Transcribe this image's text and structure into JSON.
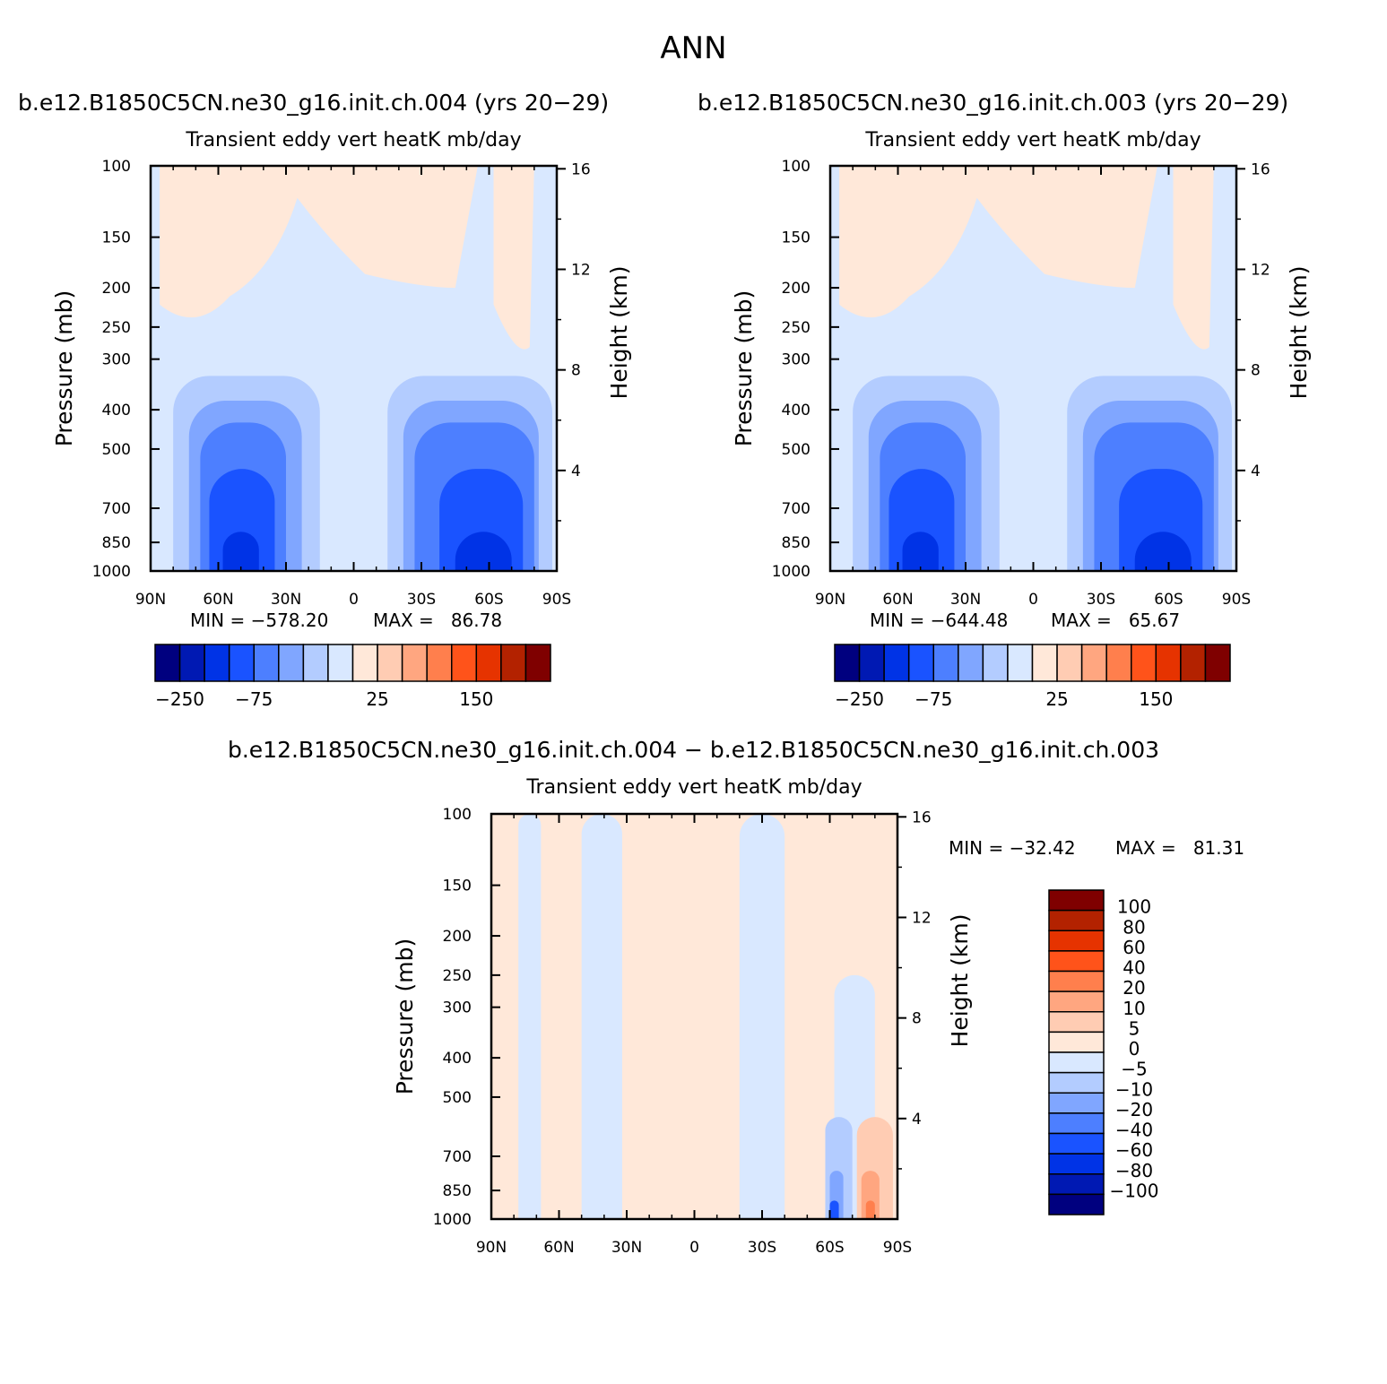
{
  "title": "ANN",
  "panels": [
    {
      "case": "b.e12.B1850C5CN.ne30_g16.init.ch.004 (yrs 20−29)",
      "subtitle": "Transient eddy vert heatK mb/day",
      "min_label": "MIN = −578.20",
      "max_label": "MAX =   86.78"
    },
    {
      "case": "b.e12.B1850C5CN.ne30_g16.init.ch.003 (yrs 20−29)",
      "subtitle": "Transient eddy vert heatK mb/day",
      "min_label": "MIN = −644.48",
      "max_label": "MAX =   65.67"
    },
    {
      "case": "b.e12.B1850C5CN.ne30_g16.init.ch.004 − b.e12.B1850C5CN.ne30_g16.init.ch.003",
      "subtitle": "Transient eddy vert heatK mb/day",
      "min_label": "MIN = −32.42",
      "max_label": "MAX =   81.31"
    }
  ],
  "chart_data": [
    {
      "type": "heatmap",
      "xlabel": "",
      "ylabel": "Pressure (mb)",
      "ylabel_right": "Height (km)",
      "x_ticks": [
        "90N",
        "60N",
        "30N",
        "0",
        "30S",
        "60S",
        "90S"
      ],
      "y_ticks": [
        100,
        150,
        200,
        250,
        300,
        400,
        500,
        700,
        850,
        1000
      ],
      "y_right_ticks": [
        4,
        8,
        12,
        16
      ],
      "colorbar_labels": [
        "−250",
        "−75",
        "25",
        "150"
      ],
      "colors": [
        "#00007f",
        "#0019b3",
        "#0033e6",
        "#1a53ff",
        "#4d7fff",
        "#80a6ff",
        "#b3ccff",
        "#d9e8ff",
        "#ffe8d9",
        "#ffccb3",
        "#ffa680",
        "#ff7f4d",
        "#ff531a",
        "#e63300",
        "#b32200",
        "#7f0000"
      ],
      "bands": [
        {
          "color": "#d9e8ff",
          "lat": [
            85,
            -85
          ],
          "p": [
            1000,
            330
          ]
        },
        {
          "color": "#b3ccff",
          "lat": [
            80,
            15
          ],
          "p": [
            1000,
            330
          ]
        },
        {
          "color": "#b3ccff",
          "lat": [
            -15,
            -88
          ],
          "p": [
            1000,
            330
          ]
        },
        {
          "color": "#80a6ff",
          "lat": [
            73,
            23
          ],
          "p": [
            1000,
            380
          ]
        },
        {
          "color": "#80a6ff",
          "lat": [
            -22,
            -82
          ],
          "p": [
            1000,
            380
          ]
        },
        {
          "color": "#4d7fff",
          "lat": [
            68,
            30
          ],
          "p": [
            1000,
            430
          ]
        },
        {
          "color": "#4d7fff",
          "lat": [
            -27,
            -80
          ],
          "p": [
            1000,
            430
          ]
        },
        {
          "color": "#1a53ff",
          "lat": [
            64,
            35
          ],
          "p": [
            1000,
            560
          ]
        },
        {
          "color": "#1a53ff",
          "lat": [
            -38,
            -75
          ],
          "p": [
            1000,
            560
          ]
        },
        {
          "color": "#0033e6",
          "lat": [
            58,
            42
          ],
          "p": [
            1000,
            800
          ]
        },
        {
          "color": "#0033e6",
          "lat": [
            -45,
            -70
          ],
          "p": [
            1000,
            800
          ]
        }
      ]
    },
    {
      "type": "heatmap",
      "xlabel": "",
      "ylabel": "Pressure (mb)",
      "ylabel_right": "Height (km)",
      "x_ticks": [
        "90N",
        "60N",
        "30N",
        "0",
        "30S",
        "60S",
        "90S"
      ],
      "y_ticks": [
        100,
        150,
        200,
        250,
        300,
        400,
        500,
        700,
        850,
        1000
      ],
      "y_right_ticks": [
        4,
        8,
        12,
        16
      ],
      "colorbar_labels": [
        "−250",
        "−75",
        "25",
        "150"
      ],
      "colors": [
        "#00007f",
        "#0019b3",
        "#0033e6",
        "#1a53ff",
        "#4d7fff",
        "#80a6ff",
        "#b3ccff",
        "#d9e8ff",
        "#ffe8d9",
        "#ffccb3",
        "#ffa680",
        "#ff7f4d",
        "#ff531a",
        "#e63300",
        "#b32200",
        "#7f0000"
      ],
      "bands": [
        {
          "color": "#d9e8ff",
          "lat": [
            85,
            -85
          ],
          "p": [
            1000,
            330
          ]
        },
        {
          "color": "#b3ccff",
          "lat": [
            80,
            15
          ],
          "p": [
            1000,
            330
          ]
        },
        {
          "color": "#b3ccff",
          "lat": [
            -15,
            -88
          ],
          "p": [
            1000,
            330
          ]
        },
        {
          "color": "#80a6ff",
          "lat": [
            73,
            23
          ],
          "p": [
            1000,
            380
          ]
        },
        {
          "color": "#80a6ff",
          "lat": [
            -22,
            -82
          ],
          "p": [
            1000,
            380
          ]
        },
        {
          "color": "#4d7fff",
          "lat": [
            68,
            30
          ],
          "p": [
            1000,
            430
          ]
        },
        {
          "color": "#4d7fff",
          "lat": [
            -27,
            -80
          ],
          "p": [
            1000,
            430
          ]
        },
        {
          "color": "#1a53ff",
          "lat": [
            64,
            35
          ],
          "p": [
            1000,
            560
          ]
        },
        {
          "color": "#1a53ff",
          "lat": [
            -38,
            -75
          ],
          "p": [
            1000,
            560
          ]
        },
        {
          "color": "#0033e6",
          "lat": [
            58,
            42
          ],
          "p": [
            1000,
            800
          ]
        },
        {
          "color": "#0033e6",
          "lat": [
            -45,
            -70
          ],
          "p": [
            1000,
            800
          ]
        }
      ]
    },
    {
      "type": "heatmap",
      "xlabel": "",
      "ylabel": "Pressure (mb)",
      "ylabel_right": "Height (km)",
      "x_ticks": [
        "90N",
        "60N",
        "30N",
        "0",
        "30S",
        "60S",
        "90S"
      ],
      "y_ticks": [
        100,
        150,
        200,
        250,
        300,
        400,
        500,
        700,
        850,
        1000
      ],
      "y_right_ticks": [
        4,
        8,
        12,
        16
      ],
      "colorbar_labels": [
        "100",
        "80",
        "60",
        "40",
        "20",
        "10",
        "5",
        "0",
        "−5",
        "−10",
        "−20",
        "−40",
        "−60",
        "−80",
        "−100"
      ],
      "colors": [
        "#7f0000",
        "#b32200",
        "#e63300",
        "#ff531a",
        "#ff7f4d",
        "#ffa680",
        "#ffccb3",
        "#ffe8d9",
        "#d9e8ff",
        "#b3ccff",
        "#80a6ff",
        "#4d7fff",
        "#1a53ff",
        "#0033e6",
        "#0019b3",
        "#00007f"
      ],
      "bands": [
        {
          "color": "#d9e8ff",
          "lat": [
            78,
            68
          ],
          "p": [
            1000,
            100
          ]
        },
        {
          "color": "#d9e8ff",
          "lat": [
            50,
            32
          ],
          "p": [
            1000,
            100
          ]
        },
        {
          "color": "#d9e8ff",
          "lat": [
            -20,
            -40
          ],
          "p": [
            1000,
            100
          ]
        },
        {
          "color": "#d9e8ff",
          "lat": [
            -62,
            -80
          ],
          "p": [
            1000,
            250
          ]
        },
        {
          "color": "#b3ccff",
          "lat": [
            -58,
            -70
          ],
          "p": [
            1000,
            560
          ]
        },
        {
          "color": "#80a6ff",
          "lat": [
            -60,
            -66
          ],
          "p": [
            1000,
            760
          ]
        },
        {
          "color": "#1a53ff",
          "lat": [
            -60,
            -64
          ],
          "p": [
            1000,
            900
          ]
        },
        {
          "color": "#ffccb3",
          "lat": [
            -72,
            -88
          ],
          "p": [
            1000,
            560
          ]
        },
        {
          "color": "#ffa680",
          "lat": [
            -74,
            -82
          ],
          "p": [
            1000,
            760
          ]
        },
        {
          "color": "#ff7f4d",
          "lat": [
            -76,
            -80
          ],
          "p": [
            1000,
            900
          ]
        }
      ]
    }
  ]
}
